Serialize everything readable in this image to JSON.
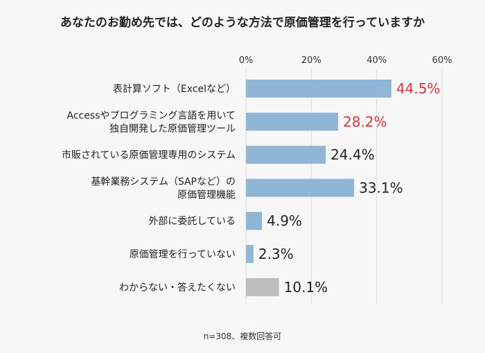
{
  "chart_data": {
    "type": "bar",
    "orientation": "horizontal",
    "title": "あなたのお勤め先では、どのような方法で原価管理を行っていますか",
    "xlim": [
      0,
      60
    ],
    "ticks": [
      "0%",
      "20%",
      "40%",
      "60%"
    ],
    "tick_values": [
      0,
      20,
      40,
      60
    ],
    "grid": true,
    "categories": [
      [
        "表計算ソフト（Excelなど）"
      ],
      [
        "Accessやプログラミング言語を用いて",
        "独自開発した原価管理ツール"
      ],
      [
        "市販されている原価管理専用のシステム"
      ],
      [
        "基幹業務システム（SAPなど）の",
        "原価管理機能"
      ],
      [
        "外部に委託している"
      ],
      [
        "原価管理を行っていない"
      ],
      [
        "わからない・答えたくない"
      ]
    ],
    "values": [
      44.5,
      28.2,
      24.4,
      33.1,
      4.9,
      2.3,
      10.1
    ],
    "value_labels": [
      "44.5%",
      "28.2%",
      "24.4%",
      "33.1%",
      "4.9%",
      "2.3%",
      "10.1%"
    ],
    "highlighted": [
      true,
      true,
      false,
      false,
      false,
      false,
      false
    ],
    "bar_colors": [
      "#8fb6d4",
      "#8fb6d4",
      "#8fb6d4",
      "#8fb6d4",
      "#8fb6d4",
      "#8fb6d4",
      "#bdbdbd"
    ],
    "highlight_color": "#d4353f",
    "note": "n=308、複数回答可"
  }
}
